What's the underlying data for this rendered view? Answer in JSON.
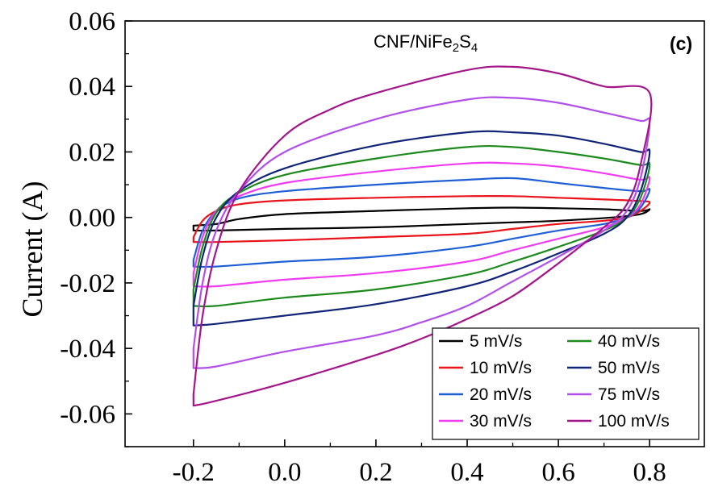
{
  "chart_data": {
    "type": "line",
    "title": "",
    "xlabel": "",
    "ylabel": "Current (A)",
    "xlim": [
      -0.35,
      0.92
    ],
    "ylim": [
      -0.07,
      0.06
    ],
    "x_ticks": [
      -0.2,
      0.0,
      0.2,
      0.4,
      0.6,
      0.8
    ],
    "x_tick_labels": [
      "-0.2",
      "0.0",
      "0.2",
      "0.4",
      "0.6",
      "0.8"
    ],
    "y_ticks": [
      0.06,
      0.04,
      0.02,
      0.0,
      -0.02,
      -0.04,
      -0.06
    ],
    "y_tick_labels": [
      "0.06",
      "0.04",
      "0.02",
      "0.00",
      "-0.02",
      "-0.04",
      "-0.06"
    ],
    "grid": false,
    "legend_position": "bottom-right",
    "annotation": {
      "formula_parts": [
        "CNF/NiFe",
        "2",
        "S",
        "4"
      ]
    },
    "panel_label": "(c)",
    "series": [
      {
        "name": "5 mV/s",
        "color": "#000000",
        "anodic": [
          [
            -0.2,
            -0.0025
          ],
          [
            -0.15,
            -0.002
          ],
          [
            -0.1,
            -0.0005
          ],
          [
            0.0,
            0.001
          ],
          [
            0.2,
            0.002
          ],
          [
            0.4,
            0.0028
          ],
          [
            0.5,
            0.003
          ],
          [
            0.6,
            0.0028
          ],
          [
            0.7,
            0.0025
          ],
          [
            0.78,
            0.002
          ],
          [
            0.8,
            0.0025
          ]
        ],
        "cathodic": [
          [
            0.8,
            0.0025
          ],
          [
            0.78,
            0.001
          ],
          [
            0.72,
            0.0
          ],
          [
            0.6,
            -0.001
          ],
          [
            0.5,
            -0.0015
          ],
          [
            0.4,
            -0.002
          ],
          [
            0.2,
            -0.003
          ],
          [
            0.0,
            -0.0035
          ],
          [
            -0.15,
            -0.004
          ],
          [
            -0.2,
            -0.004
          ]
        ]
      },
      {
        "name": "10 mV/s",
        "color": "#e8141a",
        "anodic": [
          [
            -0.2,
            -0.006
          ],
          [
            -0.18,
            -0.001
          ],
          [
            -0.15,
            0.002
          ],
          [
            -0.1,
            0.004
          ],
          [
            0.0,
            0.0052
          ],
          [
            0.2,
            0.006
          ],
          [
            0.4,
            0.0065
          ],
          [
            0.5,
            0.0065
          ],
          [
            0.6,
            0.006
          ],
          [
            0.7,
            0.0055
          ],
          [
            0.78,
            0.005
          ],
          [
            0.8,
            0.0045
          ]
        ],
        "cathodic": [
          [
            0.8,
            0.0045
          ],
          [
            0.78,
            0.002
          ],
          [
            0.75,
            0.0
          ],
          [
            0.7,
            -0.001
          ],
          [
            0.6,
            -0.002
          ],
          [
            0.5,
            -0.0035
          ],
          [
            0.4,
            -0.005
          ],
          [
            0.2,
            -0.006
          ],
          [
            0.0,
            -0.007
          ],
          [
            -0.15,
            -0.0075
          ],
          [
            -0.2,
            -0.0075
          ]
        ]
      },
      {
        "name": "20 mV/s",
        "color": "#1f5fd6",
        "anodic": [
          [
            -0.2,
            -0.013
          ],
          [
            -0.18,
            -0.004
          ],
          [
            -0.15,
            0.002
          ],
          [
            -0.1,
            0.0058
          ],
          [
            0.0,
            0.008
          ],
          [
            0.2,
            0.01
          ],
          [
            0.4,
            0.0115
          ],
          [
            0.5,
            0.012
          ],
          [
            0.6,
            0.0105
          ],
          [
            0.7,
            0.009
          ],
          [
            0.78,
            0.008
          ],
          [
            0.8,
            0.0085
          ]
        ],
        "cathodic": [
          [
            0.8,
            0.0085
          ],
          [
            0.78,
            0.003
          ],
          [
            0.75,
            0.0
          ],
          [
            0.7,
            -0.002
          ],
          [
            0.6,
            -0.004
          ],
          [
            0.5,
            -0.0065
          ],
          [
            0.4,
            -0.009
          ],
          [
            0.2,
            -0.012
          ],
          [
            0.0,
            -0.0135
          ],
          [
            -0.15,
            -0.015
          ],
          [
            -0.2,
            -0.015
          ]
        ]
      },
      {
        "name": "30 mV/s",
        "color": "#f03cf0",
        "anodic": [
          [
            -0.2,
            -0.017
          ],
          [
            -0.18,
            -0.006
          ],
          [
            -0.15,
            0.002
          ],
          [
            -0.1,
            0.0065
          ],
          [
            0.0,
            0.0105
          ],
          [
            0.2,
            0.014
          ],
          [
            0.4,
            0.0165
          ],
          [
            0.5,
            0.0165
          ],
          [
            0.6,
            0.0155
          ],
          [
            0.7,
            0.0135
          ],
          [
            0.78,
            0.0115
          ],
          [
            0.8,
            0.012
          ]
        ],
        "cathodic": [
          [
            0.8,
            0.012
          ],
          [
            0.78,
            0.004
          ],
          [
            0.75,
            0.0
          ],
          [
            0.7,
            -0.003
          ],
          [
            0.6,
            -0.0065
          ],
          [
            0.5,
            -0.01
          ],
          [
            0.4,
            -0.0135
          ],
          [
            0.2,
            -0.017
          ],
          [
            0.0,
            -0.019
          ],
          [
            -0.15,
            -0.021
          ],
          [
            -0.2,
            -0.021
          ]
        ]
      },
      {
        "name": "40 mV/s",
        "color": "#1c8a1c",
        "anodic": [
          [
            -0.2,
            -0.022
          ],
          [
            -0.18,
            -0.009
          ],
          [
            -0.15,
            0.0015
          ],
          [
            -0.1,
            0.0075
          ],
          [
            0.0,
            0.013
          ],
          [
            0.2,
            0.018
          ],
          [
            0.4,
            0.0215
          ],
          [
            0.5,
            0.0215
          ],
          [
            0.6,
            0.02
          ],
          [
            0.7,
            0.018
          ],
          [
            0.78,
            0.016
          ],
          [
            0.8,
            0.016
          ]
        ],
        "cathodic": [
          [
            0.8,
            0.016
          ],
          [
            0.78,
            0.006
          ],
          [
            0.75,
            0.0
          ],
          [
            0.7,
            -0.004
          ],
          [
            0.6,
            -0.009
          ],
          [
            0.5,
            -0.0135
          ],
          [
            0.4,
            -0.0175
          ],
          [
            0.2,
            -0.022
          ],
          [
            0.0,
            -0.0245
          ],
          [
            -0.15,
            -0.027
          ],
          [
            -0.2,
            -0.027
          ]
        ]
      },
      {
        "name": "50 mV/s",
        "color": "#102478",
        "anodic": [
          [
            -0.2,
            -0.027
          ],
          [
            -0.18,
            -0.012
          ],
          [
            -0.15,
            0.0
          ],
          [
            -0.1,
            0.008
          ],
          [
            0.0,
            0.015
          ],
          [
            0.2,
            0.022
          ],
          [
            0.4,
            0.026
          ],
          [
            0.5,
            0.026
          ],
          [
            0.6,
            0.025
          ],
          [
            0.7,
            0.0225
          ],
          [
            0.78,
            0.02
          ],
          [
            0.8,
            0.02
          ]
        ],
        "cathodic": [
          [
            0.8,
            0.02
          ],
          [
            0.78,
            0.008
          ],
          [
            0.75,
            0.0
          ],
          [
            0.7,
            -0.005
          ],
          [
            0.6,
            -0.011
          ],
          [
            0.5,
            -0.0165
          ],
          [
            0.4,
            -0.021
          ],
          [
            0.2,
            -0.0265
          ],
          [
            0.0,
            -0.03
          ],
          [
            -0.15,
            -0.0325
          ],
          [
            -0.2,
            -0.033
          ]
        ]
      },
      {
        "name": "75 mV/s",
        "color": "#b24fe8",
        "anodic": [
          [
            -0.2,
            -0.04
          ],
          [
            -0.18,
            -0.02
          ],
          [
            -0.15,
            -0.004
          ],
          [
            -0.1,
            0.008
          ],
          [
            0.0,
            0.02
          ],
          [
            0.2,
            0.03
          ],
          [
            0.4,
            0.036
          ],
          [
            0.5,
            0.0365
          ],
          [
            0.6,
            0.035
          ],
          [
            0.7,
            0.032
          ],
          [
            0.78,
            0.0295
          ],
          [
            0.8,
            0.029
          ]
        ],
        "cathodic": [
          [
            0.8,
            0.029
          ],
          [
            0.78,
            0.012
          ],
          [
            0.75,
            0.002
          ],
          [
            0.7,
            -0.004
          ],
          [
            0.6,
            -0.012
          ],
          [
            0.5,
            -0.0195
          ],
          [
            0.4,
            -0.027
          ],
          [
            0.3,
            -0.032
          ],
          [
            0.2,
            -0.036
          ],
          [
            0.0,
            -0.041
          ],
          [
            -0.15,
            -0.0455
          ],
          [
            -0.2,
            -0.046
          ]
        ]
      },
      {
        "name": "100 mV/s",
        "color": "#a3168a",
        "anodic": [
          [
            -0.2,
            -0.054
          ],
          [
            -0.18,
            -0.03
          ],
          [
            -0.15,
            -0.01
          ],
          [
            -0.1,
            0.008
          ],
          [
            0.0,
            0.025
          ],
          [
            0.1,
            0.033
          ],
          [
            0.2,
            0.038
          ],
          [
            0.4,
            0.045
          ],
          [
            0.5,
            0.046
          ],
          [
            0.6,
            0.044
          ],
          [
            0.7,
            0.04
          ],
          [
            0.8,
            0.038
          ]
        ],
        "cathodic": [
          [
            0.8,
            0.038
          ],
          [
            0.78,
            0.016
          ],
          [
            0.75,
            0.004
          ],
          [
            0.7,
            -0.003
          ],
          [
            0.6,
            -0.014
          ],
          [
            0.5,
            -0.024
          ],
          [
            0.4,
            -0.031
          ],
          [
            0.3,
            -0.037
          ],
          [
            0.2,
            -0.042
          ],
          [
            0.0,
            -0.0505
          ],
          [
            -0.15,
            -0.056
          ],
          [
            -0.2,
            -0.0575
          ]
        ]
      }
    ]
  }
}
